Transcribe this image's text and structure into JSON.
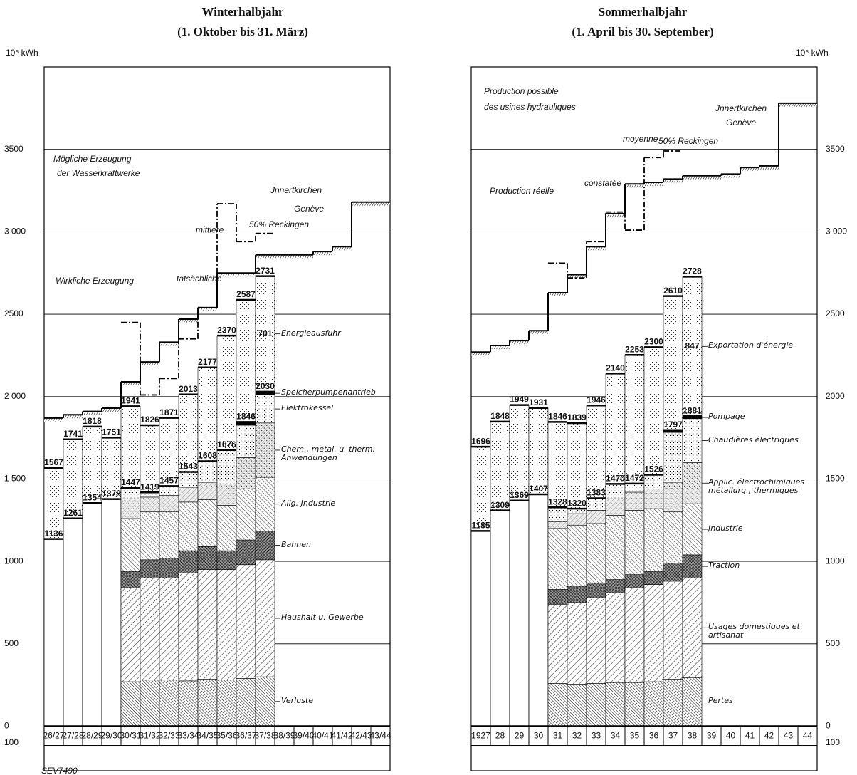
{
  "chart_data": [
    {
      "type": "bar",
      "title": "Winterhalbjahr",
      "subtitle": "(1. Oktober bis 31. März)",
      "y_label": "10⁶ kWh",
      "categories": [
        "26/27",
        "27/28",
        "28/29",
        "29/30",
        "30/31",
        "31/32",
        "32/33",
        "33/34",
        "34/35",
        "35/36",
        "36/37",
        "37/38",
        "38/39",
        "39/40",
        "40/41",
        "41/42",
        "42/43",
        "43/44"
      ],
      "ylim": [
        -270,
        4000
      ],
      "yticks": [
        {
          "value": -100,
          "label": "100"
        },
        0,
        500,
        1000,
        {
          "value": 1500,
          "label": "1 500"
        },
        {
          "value": 2000,
          "label": "2 000"
        },
        2500,
        {
          "value": 3000,
          "label": "3 000"
        },
        3500
      ],
      "grid": true,
      "totals": [
        1567,
        1741,
        1818,
        1751,
        1941,
        1826,
        1871,
        2013,
        2177,
        2370,
        2587,
        2731,
        null,
        null,
        null,
        null,
        null,
        null
      ],
      "inland_totals": [
        1136,
        1261,
        1354,
        1378,
        1447,
        1419,
        1457,
        1543,
        1608,
        1676,
        1846,
        2030,
        null,
        null,
        null,
        null,
        null,
        null
      ],
      "series": [
        {
          "name": "Verluste",
          "color": "#000000",
          "values": [
            null,
            null,
            null,
            null,
            270,
            280,
            280,
            275,
            285,
            280,
            290,
            300,
            null,
            null,
            null,
            null,
            null,
            null
          ]
        },
        {
          "name": "Haushalt u. Gewerbe",
          "color": "#000000",
          "values": [
            null,
            null,
            null,
            null,
            570,
            620,
            620,
            655,
            665,
            670,
            690,
            710,
            null,
            null,
            null,
            null,
            null,
            null
          ]
        },
        {
          "name": "Bahnen",
          "color": "#000000",
          "values": [
            null,
            null,
            null,
            null,
            100,
            110,
            120,
            135,
            140,
            115,
            150,
            175,
            null,
            null,
            null,
            null,
            null,
            null
          ]
        },
        {
          "name": "Allg. Jndustrie",
          "color": "#000000",
          "values": [
            null,
            null,
            null,
            null,
            320,
            290,
            280,
            295,
            285,
            275,
            310,
            325,
            null,
            null,
            null,
            null,
            null,
            null
          ]
        },
        {
          "name": "Chem., metal. u. therm. Anwendungen",
          "color": "#000000",
          "values": [
            null,
            null,
            null,
            null,
            120,
            90,
            100,
            90,
            105,
            130,
            190,
            330,
            null,
            null,
            null,
            null,
            null,
            null
          ]
        },
        {
          "name": "Elektrokessel",
          "color": "#000000",
          "values": [
            null,
            null,
            null,
            null,
            67,
            29,
            57,
            93,
            128,
            206,
            196,
            170,
            null,
            null,
            null,
            null,
            null,
            null
          ]
        },
        {
          "name": "Speicherpumpenantrieb",
          "color": "#000000",
          "values": [
            null,
            null,
            null,
            null,
            null,
            null,
            null,
            null,
            null,
            null,
            20,
            20,
            null,
            null,
            null,
            null,
            null,
            null
          ]
        },
        {
          "name": "Energieausfuhr",
          "color": "#000000",
          "values": [
            431,
            480,
            464,
            373,
            494,
            407,
            414,
            470,
            569,
            694,
            741,
            701,
            null,
            null,
            null,
            null,
            null,
            null
          ],
          "value_labels": [
            null,
            null,
            null,
            null,
            null,
            null,
            null,
            null,
            null,
            null,
            null,
            "701",
            null,
            null,
            null,
            null,
            null,
            null
          ]
        }
      ],
      "steps": [
        {
          "name": "mittlere",
          "style": "hatched",
          "values": [
            1870,
            1890,
            1910,
            1930,
            2090,
            2210,
            2330,
            2470,
            2540,
            2750,
            2750,
            2860,
            2860,
            2860,
            2880,
            2910,
            3180,
            3180
          ]
        },
        {
          "name": "tatsächliche",
          "style": "dash-dot",
          "values": [
            null,
            null,
            null,
            null,
            2450,
            2010,
            2110,
            2350,
            2540,
            3170,
            2940,
            2990,
            null,
            null,
            null,
            null,
            null,
            null
          ]
        }
      ],
      "annotations": [
        "Mögliche Erzeugung",
        "der Wasserkraftwerke",
        "Jnnertkirchen",
        "Genève",
        "50% Reckingen",
        "Wirkliche Erzeugung",
        "SEV7490"
      ]
    },
    {
      "type": "bar",
      "title": "Sommerhalbjahr",
      "subtitle": "(1. April bis 30. September)",
      "y_label": "10⁶ kWh",
      "categories": [
        "1927",
        "28",
        "29",
        "30",
        "31",
        "32",
        "33",
        "34",
        "35",
        "36",
        "37",
        "38",
        "39",
        "40",
        "41",
        "42",
        "43",
        "44"
      ],
      "ylim": [
        -270,
        4000
      ],
      "yticks": [
        {
          "value": -100,
          "label": "100"
        },
        0,
        500,
        1000,
        1500,
        2000,
        2500,
        {
          "value": 3000,
          "label": "3 000"
        },
        3500
      ],
      "grid": true,
      "totals": [
        1696,
        1848,
        1949,
        1931,
        1846,
        1839,
        1946,
        2140,
        2253,
        2300,
        2610,
        2728,
        null,
        null,
        null,
        null,
        null,
        null
      ],
      "inland_totals": [
        1185,
        1309,
        1369,
        1407,
        1328,
        1320,
        1383,
        1470,
        1472,
        1526,
        1797,
        1881,
        null,
        null,
        null,
        null,
        null,
        null
      ],
      "series": [
        {
          "name": "Pertes",
          "color": "#000000",
          "values": [
            null,
            null,
            null,
            null,
            260,
            255,
            260,
            265,
            265,
            270,
            285,
            295,
            null,
            null,
            null,
            null,
            null,
            null
          ]
        },
        {
          "name": "Usages domestiques et artisanat",
          "color": "#000000",
          "values": [
            null,
            null,
            null,
            null,
            480,
            495,
            520,
            545,
            575,
            590,
            595,
            605,
            null,
            null,
            null,
            null,
            null,
            null
          ]
        },
        {
          "name": "Traction",
          "color": "#000000",
          "values": [
            null,
            null,
            null,
            null,
            90,
            100,
            90,
            80,
            80,
            80,
            110,
            140,
            null,
            null,
            null,
            null,
            null,
            null
          ]
        },
        {
          "name": "Jndustrie",
          "color": "#000000",
          "values": [
            null,
            null,
            null,
            null,
            370,
            370,
            360,
            390,
            390,
            380,
            310,
            310,
            null,
            null,
            null,
            null,
            null,
            null
          ]
        },
        {
          "name": "Applic. électrochimiques métallurg., thermiques",
          "color": "#000000",
          "values": [
            null,
            null,
            null,
            null,
            40,
            70,
            80,
            100,
            110,
            120,
            180,
            250,
            null,
            null,
            null,
            null,
            null,
            null
          ]
        },
        {
          "name": "Chaudières électriques",
          "color": "#000000",
          "values": [
            null,
            null,
            null,
            null,
            88,
            30,
            73,
            90,
            52,
            86,
            302,
            266,
            null,
            null,
            null,
            null,
            null,
            null
          ]
        },
        {
          "name": "Pompage",
          "color": "#000000",
          "values": [
            null,
            null,
            null,
            null,
            null,
            null,
            null,
            null,
            null,
            null,
            15,
            15,
            null,
            null,
            null,
            null,
            null,
            null
          ]
        },
        {
          "name": "Exportation d'énergie",
          "color": "#000000",
          "values": [
            511,
            539,
            580,
            524,
            518,
            519,
            563,
            670,
            781,
            774,
            813,
            847,
            null,
            null,
            null,
            null,
            null,
            null
          ],
          "value_labels": [
            null,
            null,
            null,
            null,
            null,
            null,
            null,
            null,
            null,
            null,
            null,
            "847",
            null,
            null,
            null,
            null,
            null,
            null
          ]
        }
      ],
      "steps": [
        {
          "name": "moyenne",
          "style": "hatched",
          "values": [
            2270,
            2310,
            2340,
            2400,
            2630,
            2740,
            2910,
            3110,
            3290,
            3300,
            3320,
            3340,
            3340,
            3350,
            3390,
            3400,
            3780,
            3780
          ]
        },
        {
          "name": "constatée",
          "style": "dash-dot",
          "values": [
            null,
            null,
            null,
            null,
            2810,
            2720,
            2940,
            3120,
            3010,
            3450,
            3490,
            null,
            null,
            null,
            null,
            null,
            null,
            null
          ]
        }
      ],
      "annotations": [
        "Production possible",
        "des usines hydrauliques",
        "Jnnertkirchen",
        "Genève",
        "50% Reckingen",
        "Production réelle"
      ]
    }
  ]
}
